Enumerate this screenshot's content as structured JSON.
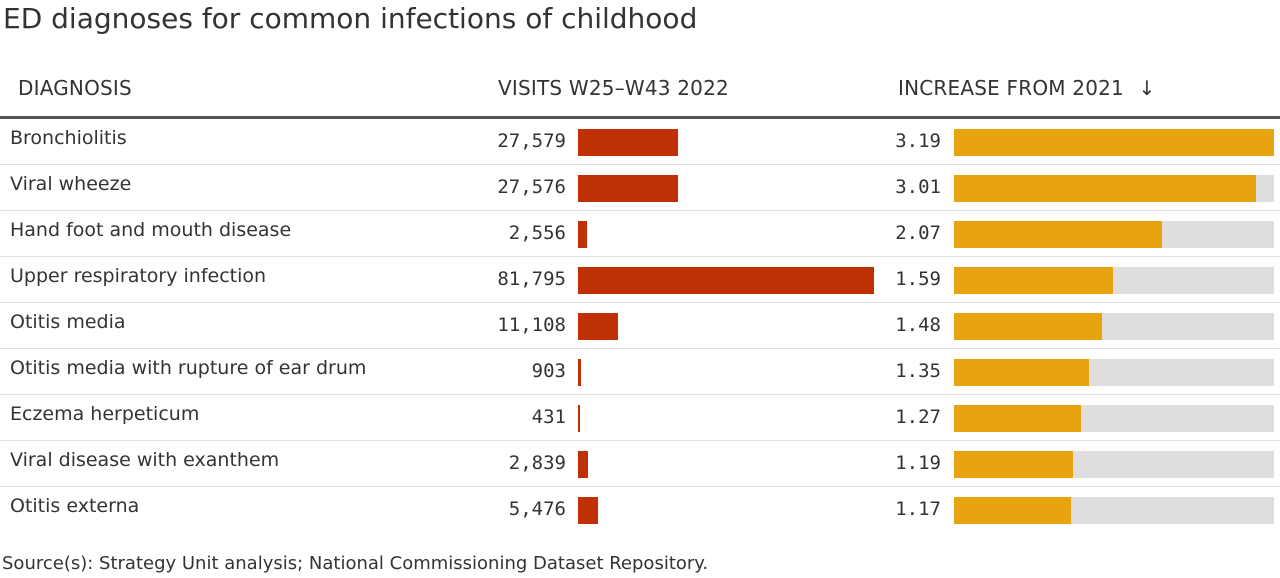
{
  "title": "ED diagnoses for common infections of childhood",
  "columns": {
    "diagnosis": "DIAGNOSIS",
    "visits": "VISITS W25–W43 2022",
    "increase": "INCREASE FROM 2021"
  },
  "sort_indicator": "↓",
  "source": "Source(s): Strategy Unit analysis; National Commissioning Dataset Repository.",
  "colors": {
    "visits_bar": "#bf3105",
    "increase_bar": "#e9a30e",
    "increase_track": "#dedede"
  },
  "chart_data": {
    "type": "table",
    "sorted_by": "increase",
    "sort_order": "descending",
    "rows": [
      {
        "diagnosis": "Bronchiolitis",
        "visits": 27579,
        "visits_label": "27,579",
        "increase": 3.19,
        "increase_label": "3.19"
      },
      {
        "diagnosis": "Viral wheeze",
        "visits": 27576,
        "visits_label": "27,576",
        "increase": 3.01,
        "increase_label": "3.01"
      },
      {
        "diagnosis": "Hand foot and mouth disease",
        "visits": 2556,
        "visits_label": "2,556",
        "increase": 2.07,
        "increase_label": "2.07"
      },
      {
        "diagnosis": "Upper respiratory infection",
        "visits": 81795,
        "visits_label": "81,795",
        "increase": 1.59,
        "increase_label": "1.59"
      },
      {
        "diagnosis": "Otitis media",
        "visits": 11108,
        "visits_label": "11,108",
        "increase": 1.48,
        "increase_label": "1.48"
      },
      {
        "diagnosis": "Otitis media with rupture of ear drum",
        "visits": 903,
        "visits_label": "903",
        "increase": 1.35,
        "increase_label": "1.35"
      },
      {
        "diagnosis": "Eczema herpeticum",
        "visits": 431,
        "visits_label": "431",
        "increase": 1.27,
        "increase_label": "1.27"
      },
      {
        "diagnosis": "Viral disease with exanthem",
        "visits": 2839,
        "visits_label": "2,839",
        "increase": 1.19,
        "increase_label": "1.19"
      },
      {
        "diagnosis": "Otitis externa",
        "visits": 5476,
        "visits_label": "5,476",
        "increase": 1.17,
        "increase_label": "1.17"
      }
    ]
  }
}
